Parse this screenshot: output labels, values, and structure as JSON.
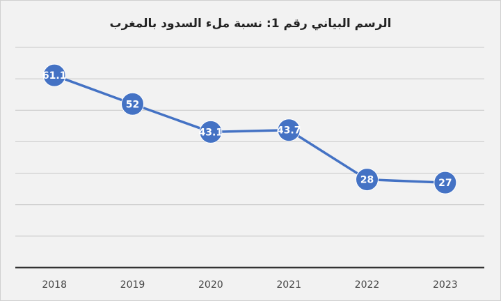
{
  "chart_data": {
    "type": "line",
    "title": "الرسم البياني رقم 1: نسبة ملء السدود بالمغرب",
    "categories": [
      "2018",
      "2019",
      "2020",
      "2021",
      "2022",
      "2023"
    ],
    "values": [
      61.1,
      52,
      43.1,
      43.7,
      28,
      27
    ],
    "color": "#4472c4",
    "ylim": [
      0,
      70
    ],
    "yticks": [
      0,
      10,
      20,
      30,
      40,
      50,
      60,
      70
    ],
    "grid": true
  }
}
